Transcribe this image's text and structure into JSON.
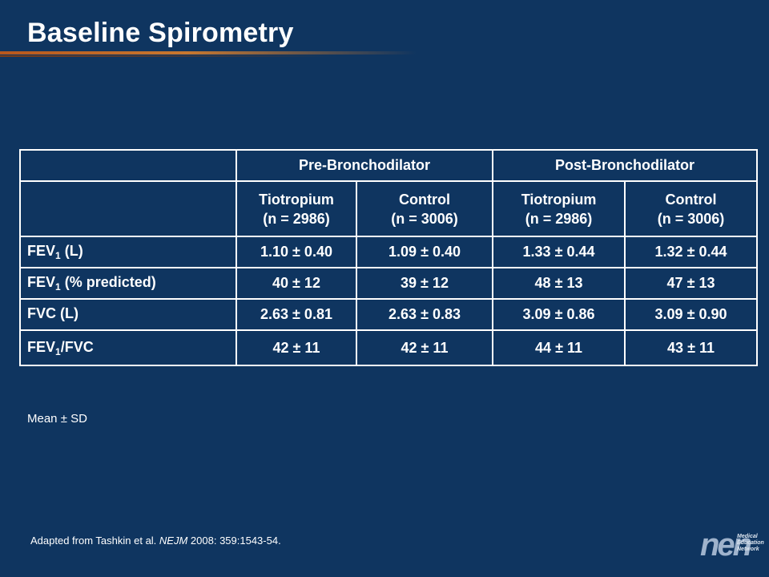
{
  "title": "Baseline Spirometry",
  "table": {
    "group_headers": [
      "Pre-Bronchodilator",
      "Post-Bronchodilator"
    ],
    "sub_headers": [
      {
        "name": "Tiotropium",
        "n": "(n = 2986)"
      },
      {
        "name": "Control",
        "n": "(n = 3006)"
      },
      {
        "name": "Tiotropium",
        "n": "(n = 2986)"
      },
      {
        "name": "Control",
        "n": "(n = 3006)"
      }
    ],
    "rows": [
      {
        "label_main": "FEV",
        "label_sub": "1",
        "label_rest": " (L)",
        "values": [
          "1.10 ± 0.40",
          "1.09 ± 0.40",
          "1.33 ± 0.44",
          "1.32 ±  0.44"
        ]
      },
      {
        "label_main": "FEV",
        "label_sub": "1",
        "label_rest": " (% predicted)",
        "values": [
          "40 ± 12",
          "39 ± 12",
          "48 ± 13",
          "47 ± 13"
        ]
      },
      {
        "label_main": "FVC (L)",
        "label_sub": "",
        "label_rest": "",
        "values": [
          "2.63 ± 0.81",
          "2.63 ± 0.83",
          "3.09 ± 0.86",
          "3.09 ± 0.90"
        ]
      },
      {
        "label_main": "FEV",
        "label_sub": "1",
        "label_rest": "/FVC",
        "values": [
          "42 ± 11",
          "42 ± 11",
          "44 ± 11",
          "43 ± 11"
        ]
      }
    ]
  },
  "footnote": "Mean ± SD",
  "source": {
    "prefix": "Adapted from Tashkin et al. ",
    "journal": "NEJM",
    "suffix": " 2008: 359:1543-54."
  },
  "logo": {
    "mark": "nen",
    "lines": [
      "Medical",
      "Education",
      "Network"
    ]
  },
  "colors": {
    "background": "#0f3560",
    "text": "#ffffff",
    "accent_rule": "#c87830"
  }
}
